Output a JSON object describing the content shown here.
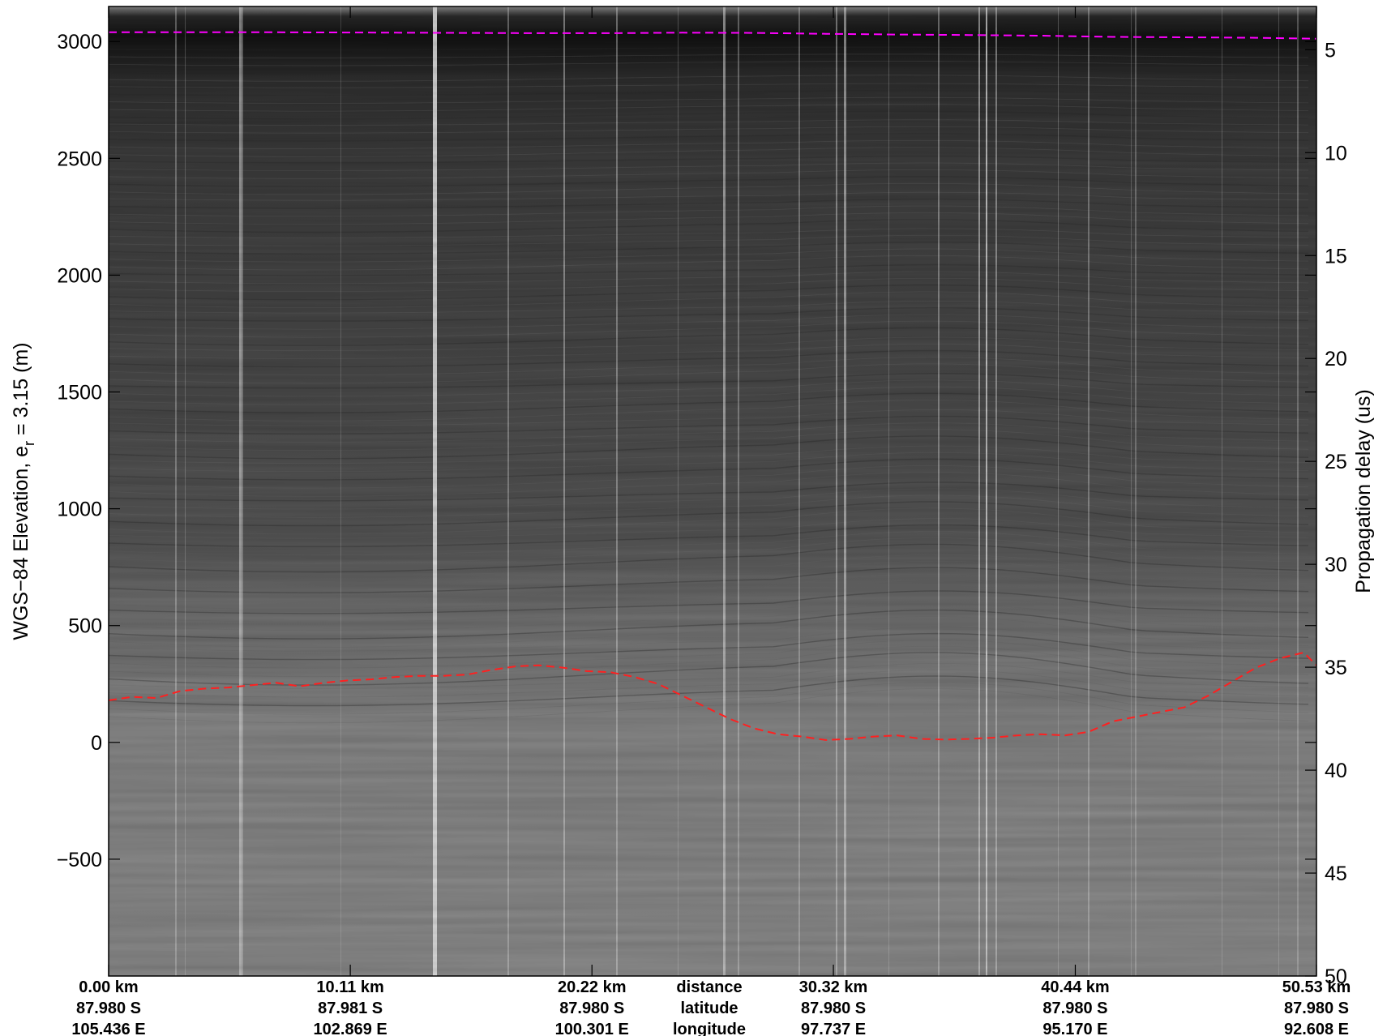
{
  "chart_data": {
    "type": "radargram",
    "ylabel_left": "WGS−84 Elevation, e",
    "ylabel_left_sub": "r",
    "ylabel_left_suffix": " = 3.15 (m)",
    "ylabel_right": "Propagation delay (us)",
    "left_axis": {
      "ylim": [
        -1000,
        3150
      ],
      "ticks": [
        3000,
        2500,
        2000,
        1500,
        1000,
        500,
        0,
        -500
      ],
      "tick_labels": [
        "3000",
        "2500",
        "2000",
        "1500",
        "1000",
        "500",
        "0",
        "−500"
      ]
    },
    "right_axis": {
      "ylim": [
        2.9,
        50
      ],
      "ticks": [
        5,
        10,
        15,
        20,
        25,
        30,
        35,
        40,
        45,
        50
      ],
      "tick_labels": [
        "5",
        "10",
        "15",
        "20",
        "25",
        "30",
        "35",
        "40",
        "45",
        "50"
      ]
    },
    "xlim_km": [
      0,
      50.53
    ],
    "x_ticks_km": [
      0,
      10.11,
      20.22,
      30.32,
      40.44,
      50.53
    ],
    "bottom_rows": {
      "distance": [
        "0.00 km",
        "10.11 km",
        "20.22 km",
        "30.32 km",
        "40.44 km",
        "50.53 km"
      ],
      "latitude": [
        "87.980 S",
        "87.981 S",
        "87.980 S",
        "87.980 S",
        "87.980 S",
        "87.980 S"
      ],
      "longitude": [
        "105.436 E",
        "102.869 E",
        "100.301 E",
        "97.737 E",
        "95.170 E",
        "92.608 E"
      ]
    },
    "row_labels": [
      "distance",
      "latitude",
      "longitude"
    ],
    "series": [
      {
        "role": "surface pick",
        "color": "#ff00ff",
        "style": "dashed",
        "x": [
          0,
          3,
          6,
          9,
          12,
          15,
          18,
          21,
          24,
          27,
          30,
          33,
          36,
          39,
          42,
          45,
          48,
          50.53
        ],
        "y": [
          3040,
          3040,
          3040,
          3039,
          3038,
          3037,
          3036,
          3036,
          3038,
          3037,
          3033,
          3030,
          3028,
          3025,
          3020,
          3018,
          3016,
          3012
        ]
      },
      {
        "role": "bed pick",
        "color": "#ff2020",
        "style": "dashed",
        "x": [
          0,
          1,
          2,
          3,
          4,
          5,
          6,
          7,
          8,
          9,
          10,
          11,
          12,
          13,
          14,
          15,
          16,
          17,
          18,
          19,
          20,
          21,
          22,
          23,
          24,
          25,
          26,
          27,
          28,
          29,
          30,
          31,
          32,
          33,
          34,
          35,
          36,
          37,
          38,
          39,
          40,
          41,
          42,
          43,
          44,
          45,
          46,
          47,
          48,
          49,
          50,
          50.53
        ],
        "y": [
          180,
          195,
          190,
          220,
          230,
          235,
          245,
          255,
          240,
          255,
          265,
          270,
          280,
          285,
          285,
          290,
          310,
          325,
          330,
          320,
          305,
          300,
          280,
          250,
          200,
          150,
          100,
          60,
          35,
          25,
          10,
          15,
          25,
          30,
          15,
          12,
          15,
          20,
          30,
          35,
          30,
          45,
          90,
          110,
          130,
          150,
          200,
          260,
          320,
          360,
          385,
          330
        ]
      }
    ],
    "grid": false,
    "legend": "none",
    "colormap": "grayscale"
  }
}
